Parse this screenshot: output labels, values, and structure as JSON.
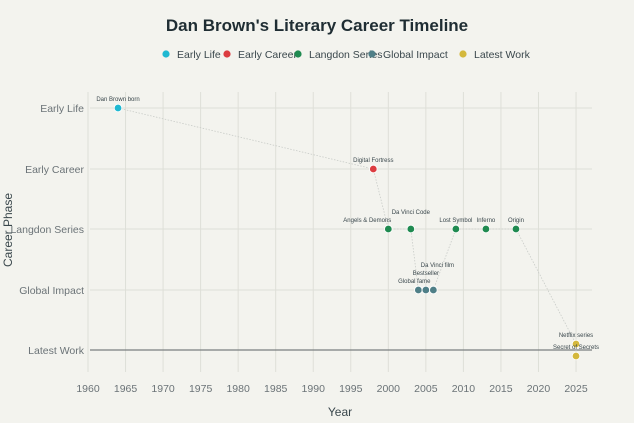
{
  "chart_data": {
    "type": "scatter",
    "title": "Dan Brown's Literary Career Timeline",
    "xlabel": "Year",
    "ylabel": "Career Phase",
    "xlim": [
      1959,
      2027
    ],
    "xticks": [
      1960,
      1965,
      1970,
      1975,
      1980,
      1985,
      1990,
      1995,
      2000,
      2005,
      2010,
      2015,
      2020,
      2025
    ],
    "categories": [
      "Early Life",
      "Early Career",
      "Langdon Series",
      "Global Impact",
      "Latest Work"
    ],
    "grid": true,
    "legend_placement": "top",
    "connecting_line": "dotted",
    "series": [
      {
        "name": "Early Life",
        "color": "#1fb8d1",
        "points": [
          {
            "x": 1964,
            "phase": "Early Life",
            "label": "Dan Brown born"
          }
        ]
      },
      {
        "name": "Early Career",
        "color": "#dc3c40",
        "points": [
          {
            "x": 1998,
            "phase": "Early Career",
            "label": "Digital Fortress"
          }
        ]
      },
      {
        "name": "Langdon Series",
        "color": "#1f8a50",
        "points": [
          {
            "x": 2000,
            "phase": "Langdon Series",
            "label": "Angels & Demons"
          },
          {
            "x": 2003,
            "phase": "Langdon Series",
            "label": "Da Vinci Code"
          },
          {
            "x": 2009,
            "phase": "Langdon Series",
            "label": "Lost Symbol"
          },
          {
            "x": 2013,
            "phase": "Langdon Series",
            "label": "Inferno"
          },
          {
            "x": 2017,
            "phase": "Langdon Series",
            "label": "Origin"
          }
        ]
      },
      {
        "name": "Global Impact",
        "color": "#4f7f87",
        "points": [
          {
            "x": 2004,
            "phase": "Global Impact",
            "label": "Global fame"
          },
          {
            "x": 2005,
            "phase": "Global Impact",
            "label": "Bestseller"
          },
          {
            "x": 2006,
            "phase": "Global Impact",
            "label": "Da Vinci film"
          }
        ]
      },
      {
        "name": "Latest Work",
        "color": "#d4b83c",
        "points": [
          {
            "x": 2025,
            "phase": "Latest Work",
            "offset": 0.1,
            "label": "Netflix series"
          },
          {
            "x": 2025,
            "phase": "Latest Work",
            "offset": -0.1,
            "label": "Secret of Secrets"
          }
        ]
      }
    ]
  }
}
